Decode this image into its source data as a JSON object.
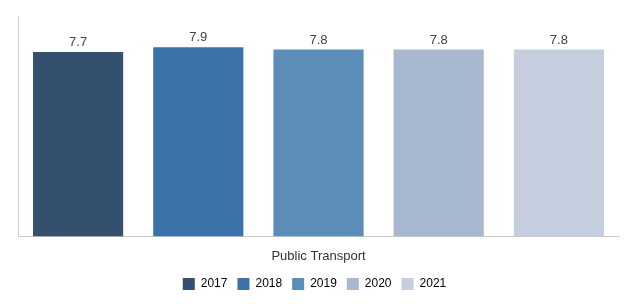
{
  "chart_data": {
    "type": "bar",
    "xlabel": "Public Transport",
    "categories": [
      "2017",
      "2018",
      "2019",
      "2020",
      "2021"
    ],
    "values": [
      7.7,
      7.9,
      7.8,
      7.8,
      7.8
    ],
    "colors": [
      "#354F6E",
      "#3B72A8",
      "#5B8DB8",
      "#A8B8D0",
      "#C5CEDF"
    ],
    "ylim": [
      0,
      9.2
    ],
    "grid": false,
    "legend": "bottom",
    "data_labels": true,
    "tick_labels": false
  }
}
